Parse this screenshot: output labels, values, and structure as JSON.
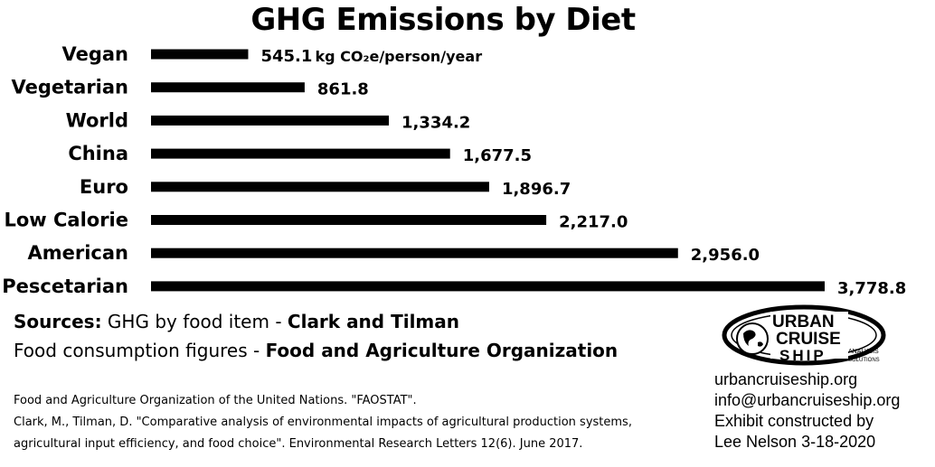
{
  "chart_data": {
    "type": "bar",
    "orientation": "horizontal",
    "title": "GHG Emissions by Diet",
    "unit_label": "kg CO₂e/person/year",
    "categories": [
      "Vegan",
      "Vegetarian",
      "World",
      "China",
      "Euro",
      "Low Calorie",
      "American",
      "Pescetarian"
    ],
    "values": [
      545.1,
      861.8,
      1334.2,
      1677.5,
      1896.7,
      2217.0,
      2956.0,
      3778.8
    ],
    "value_labels": [
      "545.1",
      "861.8",
      "1,334.2",
      "1,677.5",
      "1,896.7",
      "2,217.0",
      "2,956.0",
      "3,778.8"
    ],
    "bar_color": "#000000",
    "grid": false,
    "legend": "none"
  },
  "sources": {
    "line1_prefix": "Sources:",
    "line1_text": " GHG by food item - ",
    "line1_bold": "Clark and Tilman",
    "line2_text": "Food consumption figures - ",
    "line2_bold": "Food and Agriculture Organization"
  },
  "references": [
    "Food and Agriculture Organization of the United Nations. \"FAOSTAT\".",
    "Clark, M., Tilman, D. \"Comparative analysis of environmental impacts of agricultural production systems,",
    "agricultural input efficiency, and food choice\". Environmental Research Letters 12(6). June 2017."
  ],
  "brand": {
    "logo_word1": "URBAN",
    "logo_word2": "CRUISE",
    "logo_word3": "SHIP",
    "logo_tag1": "ANALYSIS",
    "logo_tag2": "SOLUTIONS",
    "website": "urbancruiseship.org",
    "email": "info@urbancruiseship.org",
    "credit_line1": "Exhibit constructed by",
    "credit_line2": "Lee Nelson 3-18-2020"
  }
}
